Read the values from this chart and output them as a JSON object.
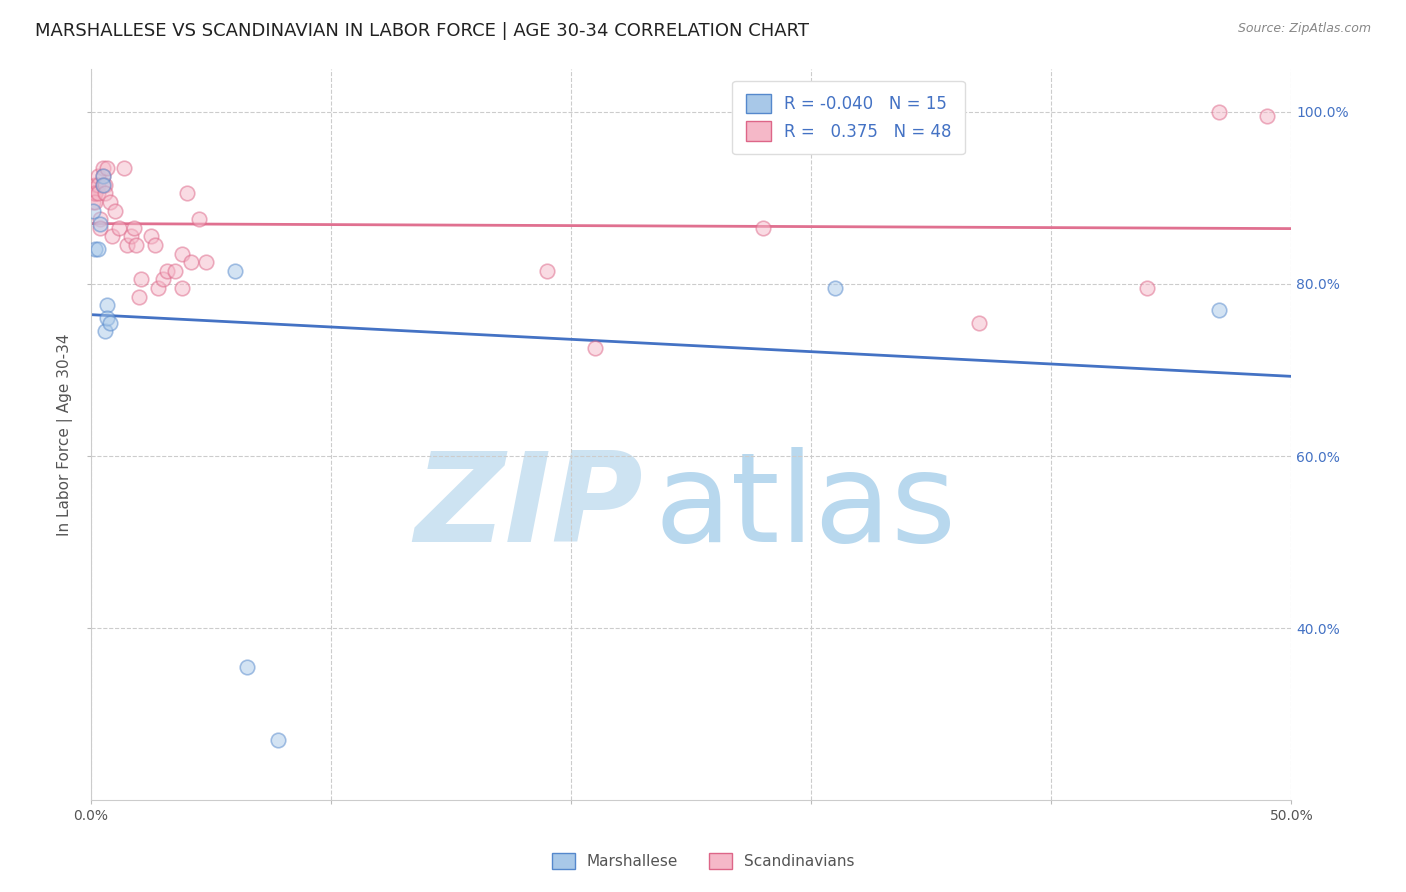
{
  "title": "MARSHALLESE VS SCANDINAVIAN IN LABOR FORCE | AGE 30-34 CORRELATION CHART",
  "source": "Source: ZipAtlas.com",
  "ylabel": "In Labor Force | Age 30-34",
  "xlim": [
    0.0,
    0.5
  ],
  "ylim": [
    0.2,
    1.05
  ],
  "right_yticks": [
    0.4,
    0.6,
    0.8,
    1.0
  ],
  "right_yticklabels": [
    "40.0%",
    "60.0%",
    "80.0%",
    "100.0%"
  ],
  "xticks": [
    0.0,
    0.1,
    0.2,
    0.3,
    0.4,
    0.5
  ],
  "xticklabels": [
    "0.0%",
    "",
    "",
    "",
    "",
    "50.0%"
  ],
  "grid_color": "#cccccc",
  "background_color": "#ffffff",
  "marshallese_x": [
    0.001,
    0.002,
    0.003,
    0.004,
    0.005,
    0.005,
    0.006,
    0.007,
    0.007,
    0.008,
    0.06,
    0.065,
    0.078,
    0.31,
    0.47
  ],
  "marshallese_y": [
    0.885,
    0.84,
    0.84,
    0.87,
    0.925,
    0.915,
    0.745,
    0.775,
    0.76,
    0.755,
    0.815,
    0.355,
    0.27,
    0.795,
    0.77
  ],
  "scandinavians_x": [
    0.001,
    0.001,
    0.001,
    0.002,
    0.002,
    0.002,
    0.002,
    0.003,
    0.003,
    0.003,
    0.004,
    0.004,
    0.005,
    0.005,
    0.005,
    0.006,
    0.006,
    0.007,
    0.008,
    0.009,
    0.01,
    0.012,
    0.014,
    0.015,
    0.017,
    0.018,
    0.019,
    0.02,
    0.021,
    0.025,
    0.027,
    0.028,
    0.03,
    0.032,
    0.035,
    0.038,
    0.038,
    0.04,
    0.042,
    0.045,
    0.048,
    0.19,
    0.21,
    0.28,
    0.37,
    0.44,
    0.47,
    0.49
  ],
  "scandinavians_y": [
    0.91,
    0.905,
    0.895,
    0.915,
    0.905,
    0.905,
    0.895,
    0.925,
    0.915,
    0.905,
    0.875,
    0.865,
    0.935,
    0.925,
    0.915,
    0.915,
    0.905,
    0.935,
    0.895,
    0.855,
    0.885,
    0.865,
    0.935,
    0.845,
    0.855,
    0.865,
    0.845,
    0.785,
    0.805,
    0.855,
    0.845,
    0.795,
    0.805,
    0.815,
    0.815,
    0.835,
    0.795,
    0.905,
    0.825,
    0.875,
    0.825,
    0.815,
    0.725,
    0.865,
    0.755,
    0.795,
    1.0,
    0.995
  ],
  "marshallese_color": "#a8c8e8",
  "scandinavians_color": "#f5b8c8",
  "marshallese_edge_color": "#5588cc",
  "scandinavians_edge_color": "#dd6688",
  "marshallese_line_color": "#4472c4",
  "scandinavians_line_color": "#e07090",
  "legend_R_marshallese": "-0.040",
  "legend_N_marshallese": "15",
  "legend_R_scandinavians": "0.375",
  "legend_N_scandinavians": "48",
  "marker_size": 110,
  "marker_alpha": 0.5,
  "title_fontsize": 13,
  "axis_label_fontsize": 11,
  "tick_fontsize": 10,
  "legend_fontsize": 12,
  "source_fontsize": 9
}
